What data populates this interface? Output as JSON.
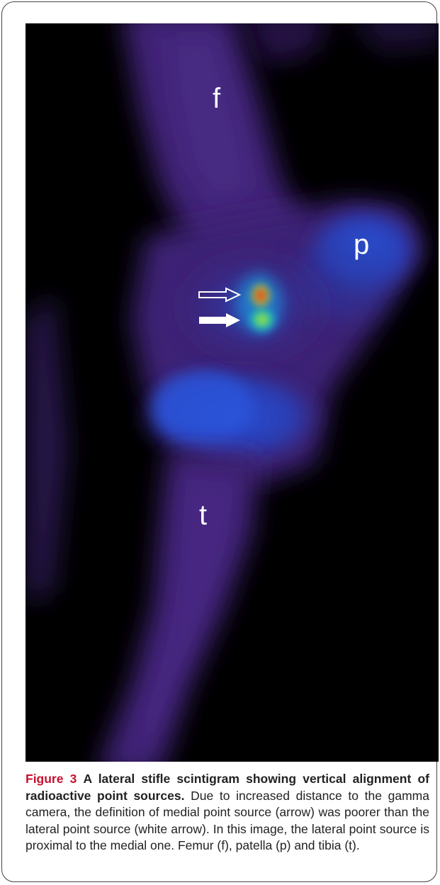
{
  "figure": {
    "labels": {
      "femur": "f",
      "patella": "p",
      "tibia": "t"
    },
    "arrows": [
      {
        "name": "medial-point-source-arrow",
        "style": "hollow",
        "color": "#ffffff"
      },
      {
        "name": "lateral-point-source-arrow",
        "style": "filled",
        "color": "#ffffff"
      }
    ],
    "colors": {
      "background": "#000000",
      "bone_low": "#3a1f6e",
      "bone_mid": "#2f4fd1",
      "hotspot_green": "#37d35a",
      "hotspot_yellow": "#e8e23a",
      "hotspot_red": "#d82a1e"
    }
  },
  "caption": {
    "figure_number": "Figure 3",
    "title": "A lateral stifle scintigram showing vertical alignment of radioactive point sources.",
    "body": "Due to increased distance to the gamma camera, the definition of medial point source (arrow) was poorer than the lateral point source (white arrow). In this image, the lateral point source is proximal to the medial one. Femur (f), patella (p) and tibia (t)."
  }
}
